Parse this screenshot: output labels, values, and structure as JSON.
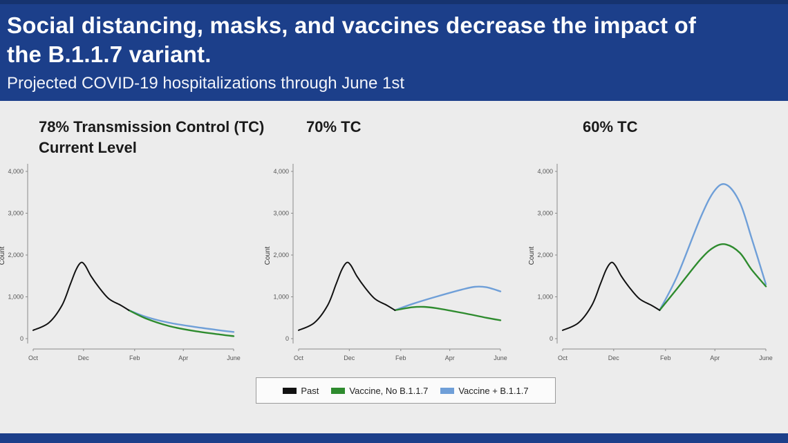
{
  "header": {
    "title": "Social distancing, masks, and vaccines decrease the impact of the B.1.1.7 variant.",
    "subtitle": "Projected COVID-19 hospitalizations through June 1st"
  },
  "panels": [
    {
      "title": "78% Transmission Control (TC) Current Level"
    },
    {
      "title": "70% TC"
    },
    {
      "title": "60% TC"
    }
  ],
  "legend": [
    {
      "label": "Past",
      "color": "#111111"
    },
    {
      "label": "Vaccine, No B.1.1.7",
      "color": "#2e8b2e"
    },
    {
      "label": "Vaccine + B.1.1.7",
      "color": "#6f9fd8"
    }
  ],
  "colors": {
    "header_bg": "#1c3f8a",
    "past": "#111111",
    "no_variant": "#2e8b2e",
    "variant": "#6f9fd8"
  },
  "chart_data": [
    {
      "type": "line",
      "title": "78% Transmission Control (TC) Current Level",
      "ylabel": "Count",
      "x_ticks": [
        "Oct",
        "Dec",
        "Feb",
        "Apr",
        "June"
      ],
      "y_ticks": [
        "0",
        "1,000",
        "2,000",
        "3,000",
        "4,000"
      ],
      "ylim": [
        0,
        4000
      ],
      "series": [
        {
          "name": "Past",
          "x": [
            "Oct 1",
            "Oct 20",
            "Nov 5",
            "Nov 15",
            "Nov 22",
            "Nov 28",
            "Dec 3",
            "Dec 10",
            "Dec 20",
            "Jan 1",
            "Jan 15",
            "Jan 25"
          ],
          "values": [
            200,
            380,
            800,
            1300,
            1650,
            1820,
            1750,
            1500,
            1220,
            950,
            800,
            680
          ]
        },
        {
          "name": "Vaccine, No B.1.1.7",
          "x": [
            "Jan 25",
            "Feb 15",
            "Mar 15",
            "Apr 15",
            "May 15",
            "June 1"
          ],
          "values": [
            680,
            480,
            300,
            180,
            100,
            60
          ]
        },
        {
          "name": "Vaccine + B.1.1.7",
          "x": [
            "Jan 25",
            "Feb 15",
            "Mar 15",
            "Apr 15",
            "May 15",
            "June 1"
          ],
          "values": [
            680,
            520,
            380,
            280,
            200,
            160
          ]
        }
      ]
    },
    {
      "type": "line",
      "title": "70% TC",
      "ylabel": "Count",
      "x_ticks": [
        "Oct",
        "Dec",
        "Feb",
        "Apr",
        "June"
      ],
      "y_ticks": [
        "0",
        "1,000",
        "2,000",
        "3,000",
        "4,000"
      ],
      "ylim": [
        0,
        4000
      ],
      "series": [
        {
          "name": "Past",
          "x": [
            "Oct 1",
            "Oct 20",
            "Nov 5",
            "Nov 15",
            "Nov 22",
            "Nov 28",
            "Dec 3",
            "Dec 10",
            "Dec 20",
            "Jan 1",
            "Jan 15",
            "Jan 25"
          ],
          "values": [
            200,
            380,
            800,
            1300,
            1650,
            1820,
            1750,
            1500,
            1220,
            950,
            800,
            680
          ]
        },
        {
          "name": "Vaccine, No B.1.1.7",
          "x": [
            "Jan 25",
            "Feb 15",
            "Mar 1",
            "Mar 15",
            "Apr 15",
            "May 15",
            "June 1"
          ],
          "values": [
            680,
            750,
            760,
            730,
            620,
            500,
            440
          ]
        },
        {
          "name": "Vaccine + B.1.1.7",
          "x": [
            "Jan 25",
            "Feb 15",
            "Mar 15",
            "Apr 15",
            "May 1",
            "May 15",
            "June 1"
          ],
          "values": [
            680,
            830,
            1000,
            1170,
            1240,
            1230,
            1130
          ]
        }
      ]
    },
    {
      "type": "line",
      "title": "60% TC",
      "ylabel": "Count",
      "x_ticks": [
        "Oct",
        "Dec",
        "Feb",
        "Apr",
        "June"
      ],
      "y_ticks": [
        "0",
        "1,000",
        "2,000",
        "3,000",
        "4,000"
      ],
      "ylim": [
        0,
        4000
      ],
      "series": [
        {
          "name": "Past",
          "x": [
            "Oct 1",
            "Oct 20",
            "Nov 5",
            "Nov 15",
            "Nov 22",
            "Nov 28",
            "Dec 3",
            "Dec 10",
            "Dec 20",
            "Jan 1",
            "Jan 15",
            "Jan 25"
          ],
          "values": [
            200,
            380,
            800,
            1300,
            1650,
            1820,
            1750,
            1500,
            1220,
            950,
            800,
            680
          ]
        },
        {
          "name": "Vaccine, No B.1.1.7",
          "x": [
            "Jan 25",
            "Feb 15",
            "Mar 15",
            "Apr 1",
            "Apr 15",
            "May 1",
            "May 15",
            "June 1"
          ],
          "values": [
            680,
            1200,
            1900,
            2200,
            2250,
            2050,
            1650,
            1250
          ]
        },
        {
          "name": "Vaccine + B.1.1.7",
          "x": [
            "Jan 25",
            "Feb 15",
            "Mar 15",
            "Apr 1",
            "Apr 15",
            "May 1",
            "May 15",
            "June 1"
          ],
          "values": [
            680,
            1500,
            2900,
            3550,
            3680,
            3250,
            2400,
            1300
          ]
        }
      ]
    }
  ]
}
